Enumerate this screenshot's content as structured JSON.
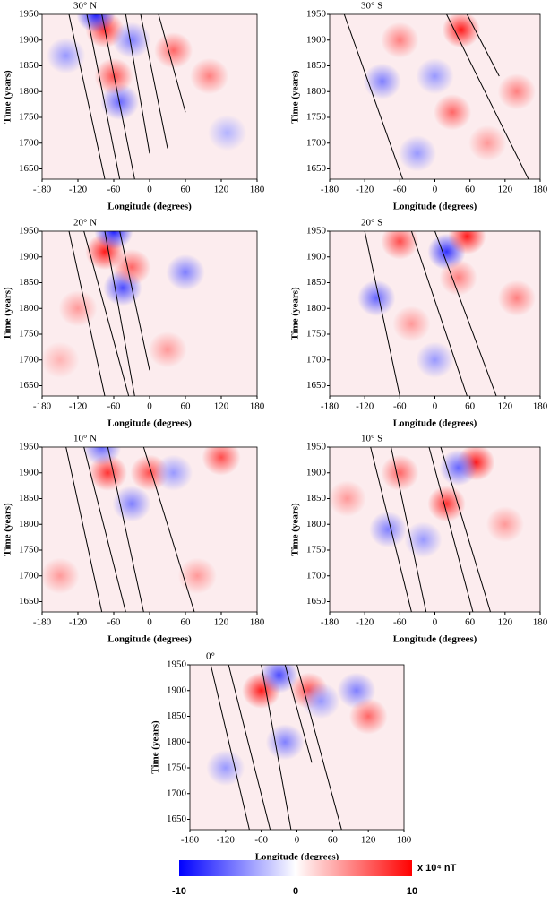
{
  "chart_data": [
    {
      "type": "hovmoller",
      "title": "30° N",
      "xlabel": "Longitude (degrees)",
      "ylabel": "Time (years)",
      "xlim": [
        -180,
        180
      ],
      "xticks": [
        -180,
        -120,
        -60,
        0,
        60,
        120,
        180
      ],
      "ylim": [
        1630,
        1950
      ],
      "yticks": [
        1650,
        1700,
        1750,
        1800,
        1850,
        1900,
        1950
      ],
      "anomalies": [
        {
          "lon": -75,
          "year": 1920,
          "value": 8
        },
        {
          "lon": -90,
          "year": 1950,
          "value": -9
        },
        {
          "lon": -50,
          "year": 1780,
          "value": -6
        },
        {
          "lon": -60,
          "year": 1830,
          "value": 7
        },
        {
          "lon": 40,
          "year": 1880,
          "value": 6
        },
        {
          "lon": -30,
          "year": 1900,
          "value": -5
        },
        {
          "lon": 100,
          "year": 1830,
          "value": 5
        },
        {
          "lon": -140,
          "year": 1870,
          "value": -4
        },
        {
          "lon": 130,
          "year": 1720,
          "value": -3
        }
      ],
      "lines": [
        [
          -135,
          1950,
          -75,
          1630
        ],
        [
          -105,
          1950,
          -50,
          1630
        ],
        [
          -80,
          1950,
          -25,
          1630
        ],
        [
          -40,
          1950,
          0,
          1680
        ],
        [
          -15,
          1950,
          30,
          1690
        ],
        [
          15,
          1950,
          60,
          1760
        ]
      ]
    },
    {
      "type": "hovmoller",
      "title": "30° S",
      "xlabel": "Longitude (degrees)",
      "ylabel": "Time (years)",
      "xlim": [
        -180,
        180
      ],
      "xticks": [
        -180,
        -120,
        -60,
        0,
        60,
        120,
        180
      ],
      "ylim": [
        1630,
        1950
      ],
      "yticks": [
        1650,
        1700,
        1750,
        1800,
        1850,
        1900,
        1950
      ],
      "anomalies": [
        {
          "lon": 45,
          "year": 1920,
          "value": 9
        },
        {
          "lon": -60,
          "year": 1900,
          "value": 5
        },
        {
          "lon": -90,
          "year": 1820,
          "value": -5
        },
        {
          "lon": 0,
          "year": 1830,
          "value": -4
        },
        {
          "lon": 140,
          "year": 1800,
          "value": 5
        },
        {
          "lon": -30,
          "year": 1680,
          "value": -4
        },
        {
          "lon": 90,
          "year": 1700,
          "value": 4
        },
        {
          "lon": 30,
          "year": 1760,
          "value": 6
        }
      ],
      "lines": [
        [
          -155,
          1950,
          -55,
          1630
        ],
        [
          20,
          1950,
          160,
          1630
        ],
        [
          55,
          1950,
          110,
          1830
        ]
      ]
    },
    {
      "type": "hovmoller",
      "title": "20° N",
      "xlabel": "Longitude (degrees)",
      "ylabel": "Time (years)",
      "xlim": [
        -180,
        180
      ],
      "xticks": [
        -180,
        -120,
        -60,
        0,
        60,
        120,
        180
      ],
      "ylim": [
        1630,
        1950
      ],
      "yticks": [
        1650,
        1700,
        1750,
        1800,
        1850,
        1900,
        1950
      ],
      "anomalies": [
        {
          "lon": -75,
          "year": 1910,
          "value": 9
        },
        {
          "lon": -60,
          "year": 1950,
          "value": -9
        },
        {
          "lon": -45,
          "year": 1840,
          "value": -7
        },
        {
          "lon": -30,
          "year": 1880,
          "value": 6
        },
        {
          "lon": 60,
          "year": 1870,
          "value": -5
        },
        {
          "lon": -120,
          "year": 1800,
          "value": 4
        },
        {
          "lon": 30,
          "year": 1720,
          "value": 4
        },
        {
          "lon": -150,
          "year": 1700,
          "value": 3
        }
      ],
      "lines": [
        [
          -135,
          1950,
          -75,
          1630
        ],
        [
          -110,
          1950,
          -35,
          1630
        ],
        [
          -75,
          1950,
          -25,
          1630
        ],
        [
          -50,
          1950,
          0,
          1680
        ]
      ]
    },
    {
      "type": "hovmoller",
      "title": "20° S",
      "xlabel": "Longitude (degrees)",
      "ylabel": "Time (years)",
      "xlim": [
        -180,
        180
      ],
      "xticks": [
        -180,
        -120,
        -60,
        0,
        60,
        120,
        180
      ],
      "ylim": [
        1630,
        1950
      ],
      "yticks": [
        1650,
        1700,
        1750,
        1800,
        1850,
        1900,
        1950
      ],
      "anomalies": [
        {
          "lon": -60,
          "year": 1930,
          "value": 7
        },
        {
          "lon": 20,
          "year": 1910,
          "value": -8
        },
        {
          "lon": 55,
          "year": 1940,
          "value": 9
        },
        {
          "lon": -100,
          "year": 1820,
          "value": -6
        },
        {
          "lon": 40,
          "year": 1860,
          "value": 5
        },
        {
          "lon": -40,
          "year": 1770,
          "value": 4
        },
        {
          "lon": 140,
          "year": 1820,
          "value": 5
        },
        {
          "lon": 0,
          "year": 1700,
          "value": -4
        }
      ],
      "lines": [
        [
          -120,
          1950,
          -60,
          1630
        ],
        [
          -40,
          1950,
          55,
          1630
        ],
        [
          0,
          1950,
          105,
          1630
        ]
      ]
    },
    {
      "type": "hovmoller",
      "title": "10° N",
      "xlabel": "Longitude (degrees)",
      "ylabel": "Time (years)",
      "xlim": [
        -180,
        180
      ],
      "xticks": [
        -180,
        -120,
        -60,
        0,
        60,
        120,
        180
      ],
      "ylim": [
        1630,
        1950
      ],
      "yticks": [
        1650,
        1700,
        1750,
        1800,
        1850,
        1900,
        1950
      ],
      "anomalies": [
        {
          "lon": -70,
          "year": 1900,
          "value": 8
        },
        {
          "lon": -80,
          "year": 1950,
          "value": -6
        },
        {
          "lon": -30,
          "year": 1840,
          "value": -5
        },
        {
          "lon": 0,
          "year": 1900,
          "value": 7
        },
        {
          "lon": 120,
          "year": 1930,
          "value": 7
        },
        {
          "lon": -150,
          "year": 1700,
          "value": 4
        },
        {
          "lon": 80,
          "year": 1700,
          "value": 4
        },
        {
          "lon": 40,
          "year": 1900,
          "value": -4
        }
      ],
      "lines": [
        [
          -140,
          1950,
          -80,
          1630
        ],
        [
          -110,
          1950,
          -40,
          1630
        ],
        [
          -70,
          1950,
          -10,
          1630
        ],
        [
          -10,
          1950,
          75,
          1630
        ]
      ]
    },
    {
      "type": "hovmoller",
      "title": "10° S",
      "xlabel": "Longitude (degrees)",
      "ylabel": "Time (years)",
      "xlim": [
        -180,
        180
      ],
      "xticks": [
        -180,
        -120,
        -60,
        0,
        60,
        120,
        180
      ],
      "ylim": [
        1630,
        1950
      ],
      "yticks": [
        1650,
        1700,
        1750,
        1800,
        1850,
        1900,
        1950
      ],
      "anomalies": [
        {
          "lon": 70,
          "year": 1920,
          "value": 9
        },
        {
          "lon": 40,
          "year": 1910,
          "value": -6
        },
        {
          "lon": -60,
          "year": 1900,
          "value": 6
        },
        {
          "lon": -80,
          "year": 1790,
          "value": -5
        },
        {
          "lon": 20,
          "year": 1840,
          "value": 8
        },
        {
          "lon": -20,
          "year": 1770,
          "value": -4
        },
        {
          "lon": 120,
          "year": 1800,
          "value": 4
        },
        {
          "lon": -150,
          "year": 1850,
          "value": 4
        }
      ],
      "lines": [
        [
          -110,
          1950,
          -40,
          1630
        ],
        [
          -75,
          1950,
          -15,
          1630
        ],
        [
          -10,
          1950,
          65,
          1630
        ],
        [
          10,
          1950,
          95,
          1630
        ]
      ]
    },
    {
      "type": "hovmoller",
      "title": "0°",
      "xlabel": "Longitude (degrees)",
      "ylabel": "Time (years)",
      "xlim": [
        -180,
        180
      ],
      "xticks": [
        -180,
        -120,
        -60,
        0,
        60,
        120,
        180
      ],
      "ylim": [
        1630,
        1950
      ],
      "yticks": [
        1650,
        1700,
        1750,
        1800,
        1850,
        1900,
        1950
      ],
      "anomalies": [
        {
          "lon": -60,
          "year": 1900,
          "value": 9
        },
        {
          "lon": -30,
          "year": 1930,
          "value": -7
        },
        {
          "lon": 20,
          "year": 1900,
          "value": 7
        },
        {
          "lon": 100,
          "year": 1900,
          "value": -5
        },
        {
          "lon": -120,
          "year": 1750,
          "value": -4
        },
        {
          "lon": -20,
          "year": 1800,
          "value": -5
        },
        {
          "lon": 40,
          "year": 1880,
          "value": -4
        },
        {
          "lon": 120,
          "year": 1850,
          "value": 6
        }
      ],
      "lines": [
        [
          -145,
          1950,
          -80,
          1630
        ],
        [
          -115,
          1950,
          -45,
          1630
        ],
        [
          -60,
          1950,
          -10,
          1630
        ],
        [
          -20,
          1950,
          25,
          1760
        ],
        [
          0,
          1950,
          75,
          1630
        ]
      ]
    },
    {
      "type": "colorbar",
      "label": "x 10⁴ nT",
      "lim": [
        -10,
        10
      ],
      "ticks": [
        -10,
        0,
        10
      ],
      "colors": [
        "#0000ff",
        "#ffffff",
        "#ff0000"
      ]
    }
  ]
}
